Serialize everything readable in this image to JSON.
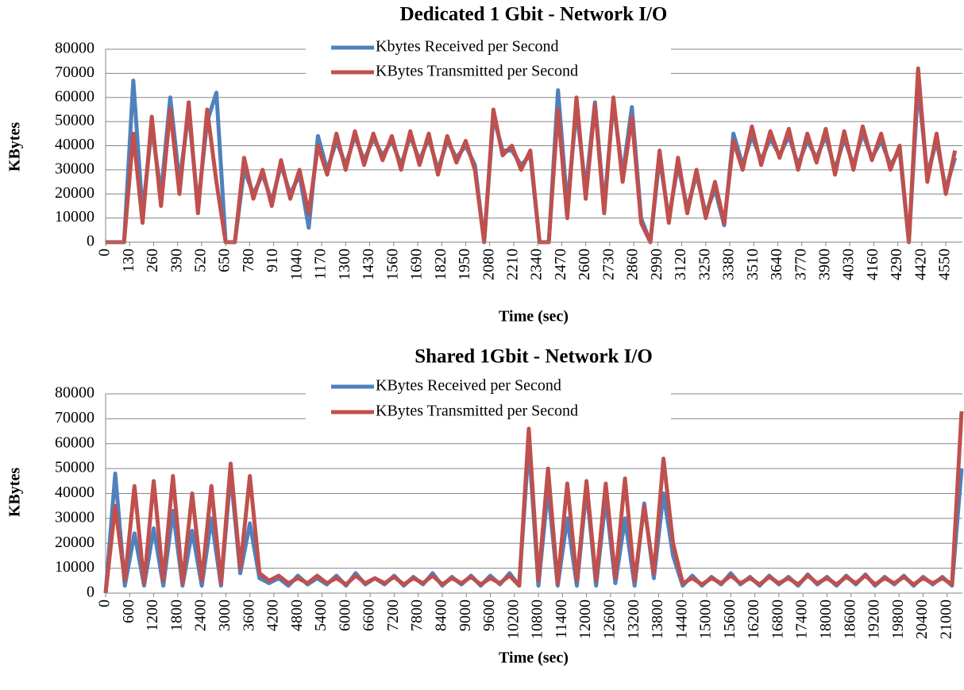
{
  "chart_data": [
    {
      "type": "line",
      "title": "Dedicated 1 Gbit - Network I/O",
      "x_label": "Time (sec)",
      "y_label": "KBytes",
      "x": [
        0,
        50,
        100,
        150,
        200,
        250,
        300,
        350,
        400,
        450,
        500,
        550,
        600,
        650,
        700,
        750,
        800,
        850,
        900,
        950,
        1000,
        1050,
        1100,
        1150,
        1200,
        1250,
        1300,
        1350,
        1400,
        1450,
        1500,
        1550,
        1600,
        1650,
        1700,
        1750,
        1800,
        1850,
        1900,
        1950,
        2000,
        2050,
        2100,
        2150,
        2200,
        2250,
        2300,
        2350,
        2400,
        2450,
        2500,
        2550,
        2600,
        2650,
        2700,
        2750,
        2800,
        2850,
        2900,
        2950,
        3000,
        3050,
        3100,
        3150,
        3200,
        3250,
        3300,
        3350,
        3400,
        3450,
        3500,
        3550,
        3600,
        3650,
        3700,
        3750,
        3800,
        3850,
        3900,
        3950,
        4000,
        4050,
        4100,
        4150,
        4200,
        4250,
        4300,
        4350,
        4400,
        4450,
        4500,
        4550,
        4600
      ],
      "series": [
        {
          "name": "Kbytes Received per Second",
          "color": "#4f81bd",
          "values": [
            0,
            0,
            0,
            67000,
            12000,
            48000,
            20000,
            60000,
            25000,
            54000,
            15000,
            50000,
            62000,
            0,
            0,
            30000,
            20000,
            28000,
            17000,
            32000,
            20000,
            28000,
            6000,
            44000,
            30000,
            42000,
            32000,
            44000,
            34000,
            43000,
            36000,
            42000,
            32000,
            44000,
            34000,
            43000,
            30000,
            42000,
            35000,
            40000,
            32000,
            0,
            52000,
            38000,
            38000,
            32000,
            36000,
            0,
            0,
            63000,
            15000,
            55000,
            22000,
            58000,
            15000,
            58000,
            28000,
            56000,
            10000,
            0,
            35000,
            10000,
            32000,
            14000,
            28000,
            12000,
            22000,
            7000,
            45000,
            32000,
            44000,
            34000,
            43000,
            36000,
            44000,
            32000,
            42000,
            35000,
            44000,
            30000,
            43000,
            32000,
            45000,
            35000,
            42000,
            32000,
            38000,
            0,
            65000,
            28000,
            42000,
            22000,
            35000
          ]
        },
        {
          "name": "KBytes Transmitted per Second",
          "color": "#c0504d",
          "values": [
            0,
            0,
            0,
            45000,
            8000,
            52000,
            15000,
            55000,
            20000,
            58000,
            12000,
            55000,
            25000,
            0,
            0,
            35000,
            18000,
            30000,
            15000,
            34000,
            18000,
            30000,
            12000,
            40000,
            28000,
            45000,
            30000,
            46000,
            32000,
            45000,
            34000,
            44000,
            30000,
            46000,
            32000,
            45000,
            28000,
            44000,
            33000,
            42000,
            30000,
            0,
            55000,
            36000,
            40000,
            30000,
            38000,
            0,
            0,
            55000,
            10000,
            60000,
            18000,
            57000,
            12000,
            60000,
            25000,
            52000,
            8000,
            0,
            38000,
            8000,
            35000,
            12000,
            30000,
            10000,
            25000,
            8000,
            42000,
            30000,
            48000,
            32000,
            46000,
            35000,
            47000,
            30000,
            45000,
            33000,
            47000,
            28000,
            46000,
            30000,
            48000,
            34000,
            45000,
            30000,
            40000,
            0,
            72000,
            25000,
            45000,
            20000,
            38000
          ]
        }
      ],
      "xlim": [
        0,
        4640
      ],
      "ylim": [
        0,
        80000
      ],
      "xticks": [
        0,
        130,
        260,
        390,
        520,
        650,
        780,
        910,
        1040,
        1170,
        1300,
        1430,
        1560,
        1690,
        1820,
        1950,
        2080,
        2210,
        2340,
        2470,
        2600,
        2730,
        2860,
        2990,
        3120,
        3250,
        3380,
        3510,
        3640,
        3770,
        3900,
        4030,
        4160,
        4290,
        4420,
        4550
      ],
      "yticks": [
        0,
        10000,
        20000,
        30000,
        40000,
        50000,
        60000,
        70000,
        80000
      ],
      "grid": true,
      "legend": "top"
    },
    {
      "type": "line",
      "title": "Shared 1Gbit - Network I/O",
      "x_label": "Time (sec)",
      "y_label": "KBytes",
      "x": [
        0,
        240,
        480,
        720,
        960,
        1200,
        1440,
        1680,
        1920,
        2160,
        2400,
        2640,
        2880,
        3120,
        3360,
        3600,
        3840,
        4080,
        4320,
        4560,
        4800,
        5040,
        5280,
        5520,
        5760,
        6000,
        6240,
        6480,
        6720,
        6960,
        7200,
        7440,
        7680,
        7920,
        8160,
        8400,
        8640,
        8880,
        9120,
        9360,
        9600,
        9840,
        10080,
        10320,
        10560,
        10800,
        11040,
        11280,
        11520,
        11760,
        12000,
        12240,
        12480,
        12720,
        12960,
        13200,
        13440,
        13680,
        13920,
        14160,
        14400,
        14640,
        14880,
        15120,
        15360,
        15600,
        15840,
        16080,
        16320,
        16560,
        16800,
        17040,
        17280,
        17520,
        17760,
        18000,
        18240,
        18480,
        18720,
        18960,
        19200,
        19440,
        19680,
        19920,
        20160,
        20400,
        20640,
        20880,
        21120,
        21360
      ],
      "series": [
        {
          "name": "KBytes Received per Second",
          "color": "#4f81bd",
          "values": [
            0,
            48000,
            3000,
            24000,
            3000,
            26000,
            3000,
            33000,
            3000,
            25000,
            3000,
            30000,
            3000,
            48000,
            8000,
            28000,
            6000,
            4000,
            6000,
            3000,
            7000,
            3500,
            6000,
            3500,
            7000,
            3000,
            8000,
            3500,
            6000,
            3500,
            7000,
            3000,
            6500,
            3500,
            8000,
            3000,
            6500,
            3500,
            7000,
            3000,
            7000,
            3500,
            8000,
            3000,
            60000,
            3000,
            42000,
            3000,
            30000,
            3000,
            42000,
            3000,
            38000,
            4000,
            30000,
            3000,
            36000,
            6000,
            40000,
            15000,
            3000,
            7000,
            3000,
            6500,
            3500,
            8000,
            3500,
            6500,
            3000,
            7000,
            3500,
            6500,
            3000,
            7500,
            3500,
            6500,
            3000,
            7000,
            3500,
            7500,
            3000,
            6500,
            3500,
            7000,
            3000,
            6500,
            3500,
            6500,
            3000,
            50000
          ]
        },
        {
          "name": "KBytes Transmitted per Second",
          "color": "#c0504d",
          "values": [
            0,
            35000,
            5000,
            43000,
            4000,
            45000,
            5000,
            47000,
            4000,
            40000,
            5000,
            43000,
            4000,
            52000,
            10000,
            47000,
            8000,
            5000,
            7000,
            4000,
            6000,
            4000,
            7000,
            4000,
            6000,
            3500,
            7000,
            4000,
            6000,
            4000,
            6500,
            3500,
            6000,
            4000,
            7000,
            3500,
            6000,
            4000,
            6500,
            3500,
            6000,
            4000,
            7000,
            3000,
            66000,
            5000,
            50000,
            4000,
            44000,
            5000,
            45000,
            5000,
            44000,
            6000,
            46000,
            5000,
            35000,
            8000,
            54000,
            20000,
            4000,
            6000,
            3500,
            6000,
            4000,
            7000,
            4000,
            6000,
            3500,
            6500,
            4000,
            6000,
            3500,
            7000,
            4000,
            6000,
            3500,
            6500,
            4000,
            7000,
            3500,
            6000,
            4000,
            6500,
            3500,
            6000,
            4000,
            6000,
            3500,
            73000
          ]
        }
      ],
      "xlim": [
        0,
        21380
      ],
      "ylim": [
        0,
        80000
      ],
      "xticks": [
        0,
        600,
        1200,
        1800,
        2400,
        3000,
        3600,
        4200,
        4800,
        5400,
        6000,
        6600,
        7200,
        7800,
        8400,
        9000,
        9600,
        10200,
        10800,
        11400,
        12000,
        12600,
        13200,
        13800,
        14400,
        15000,
        15600,
        16200,
        16800,
        17400,
        18000,
        18600,
        19200,
        19800,
        20400,
        21000
      ],
      "yticks": [
        0,
        10000,
        20000,
        30000,
        40000,
        50000,
        60000,
        70000,
        80000
      ],
      "grid": true,
      "legend": "top"
    }
  ]
}
